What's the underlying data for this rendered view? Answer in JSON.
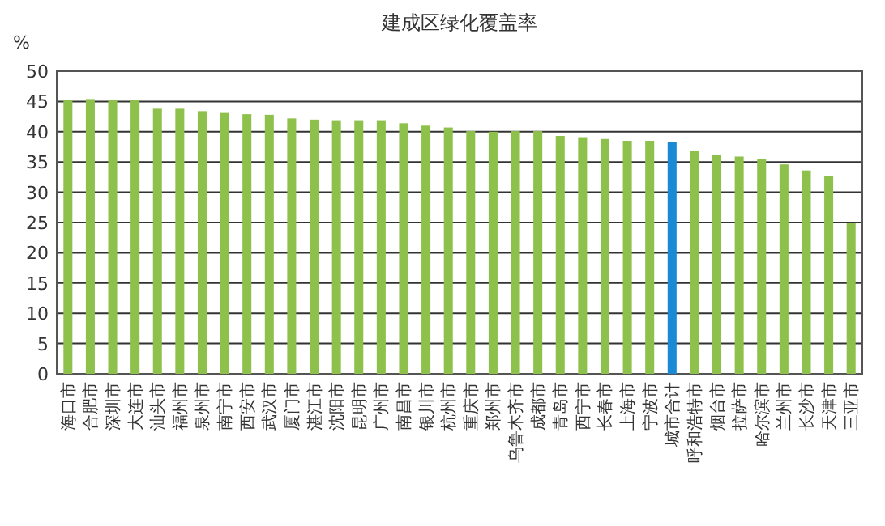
{
  "chart_data": {
    "type": "bar",
    "title": "建成区绿化覆盖率",
    "ylabel": "%",
    "categories": [
      "海口市",
      "合肥市",
      "深圳市",
      "大连市",
      "汕头市",
      "福州市",
      "泉州市",
      "南宁市",
      "西安市",
      "武汉市",
      "厦门市",
      "湛江市",
      "沈阳市",
      "昆明市",
      "广州市",
      "南昌市",
      "银川市",
      "杭州市",
      "重庆市",
      "郑州市",
      "乌鲁木齐市",
      "成都市",
      "青岛市",
      "西宁市",
      "长春市",
      "上海市",
      "宁波市",
      "城市合计",
      "呼和浩特市",
      "烟台市",
      "拉萨市",
      "哈尔滨市",
      "兰州市",
      "长沙市",
      "天津市",
      "三亚市"
    ],
    "values": [
      45.3,
      45.4,
      45.2,
      45.2,
      43.8,
      43.8,
      43.4,
      43.1,
      42.9,
      42.8,
      42.2,
      42.0,
      41.9,
      41.9,
      41.9,
      41.4,
      41.0,
      40.7,
      40.1,
      40.0,
      40.1,
      40.1,
      39.3,
      39.1,
      38.8,
      38.5,
      38.5,
      38.3,
      36.9,
      36.2,
      35.9,
      35.5,
      34.6,
      33.6,
      32.7,
      24.9
    ],
    "colors": [
      "#8dc14b",
      "#8dc14b",
      "#8dc14b",
      "#8dc14b",
      "#8dc14b",
      "#8dc14b",
      "#8dc14b",
      "#8dc14b",
      "#8dc14b",
      "#8dc14b",
      "#8dc14b",
      "#8dc14b",
      "#8dc14b",
      "#8dc14b",
      "#8dc14b",
      "#8dc14b",
      "#8dc14b",
      "#8dc14b",
      "#8dc14b",
      "#8dc14b",
      "#8dc14b",
      "#8dc14b",
      "#8dc14b",
      "#8dc14b",
      "#8dc14b",
      "#8dc14b",
      "#8dc14b",
      "#1a8ad4",
      "#8dc14b",
      "#8dc14b",
      "#8dc14b",
      "#8dc14b",
      "#8dc14b",
      "#8dc14b",
      "#8dc14b",
      "#8dc14b"
    ],
    "ylim": [
      0,
      50
    ],
    "yticks": [
      0,
      5,
      10,
      15,
      20,
      25,
      30,
      35,
      40,
      45,
      50
    ],
    "grid": "y"
  }
}
